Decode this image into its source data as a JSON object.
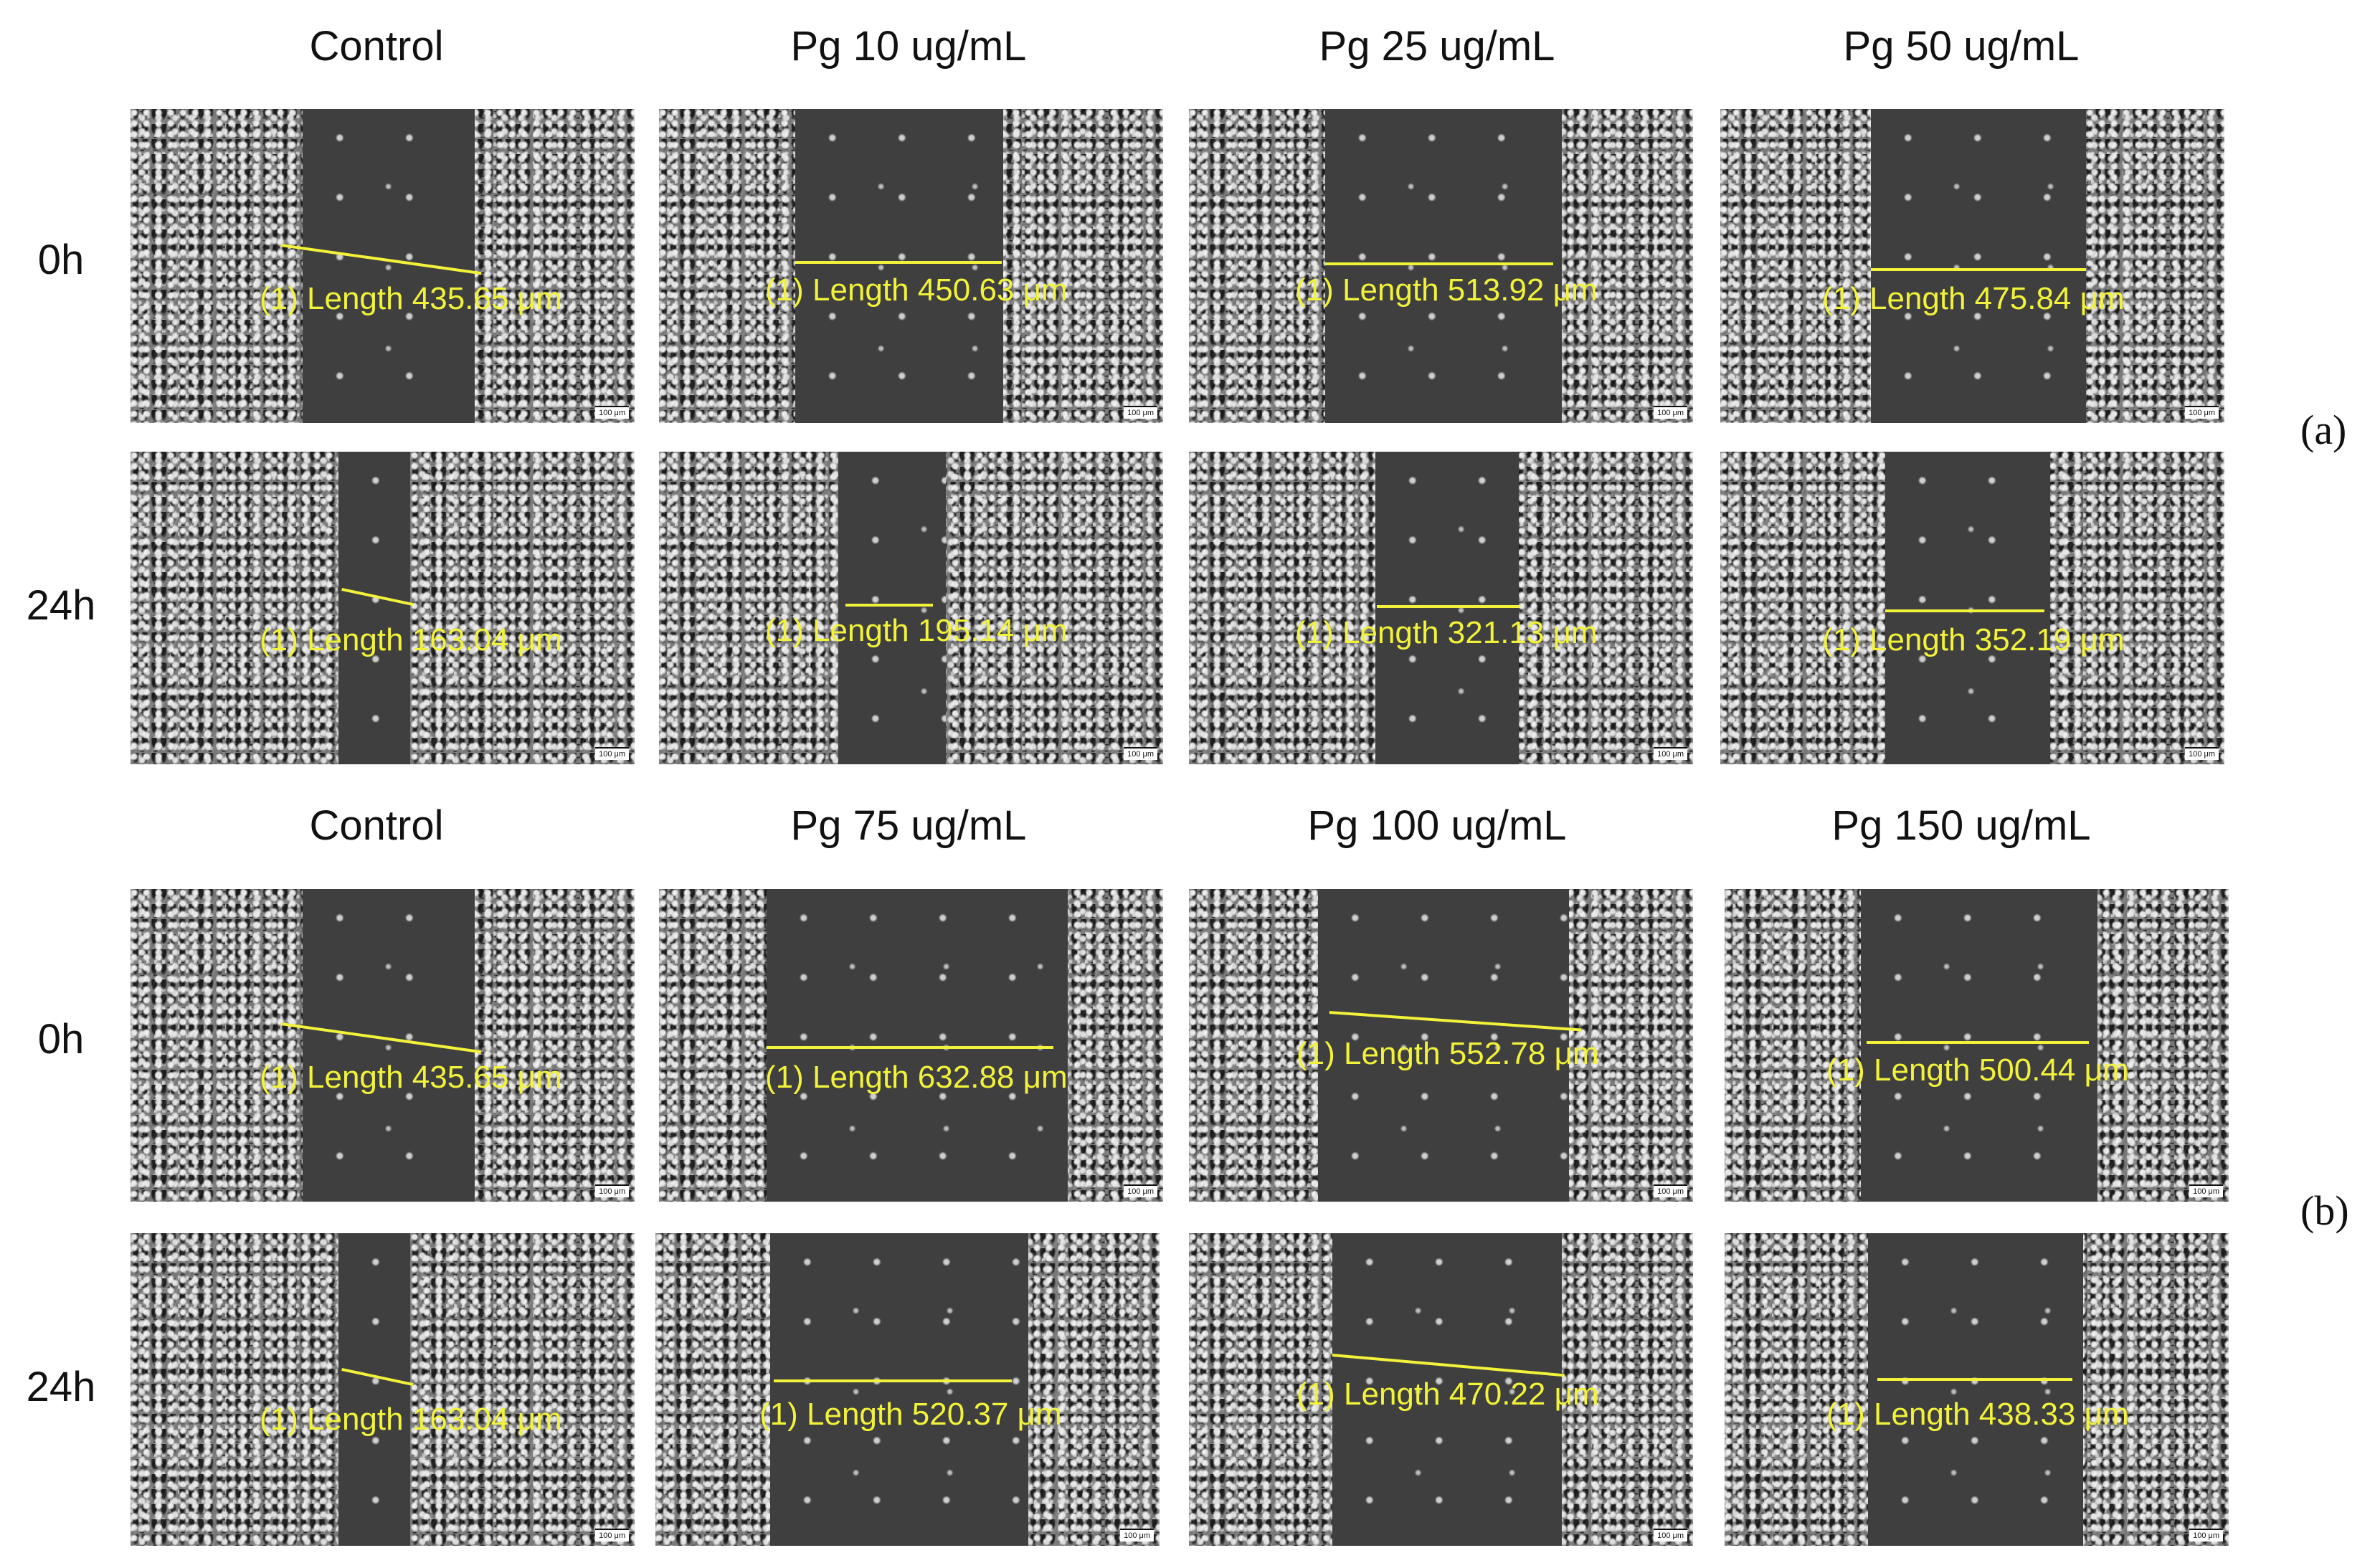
{
  "sections": [
    {
      "label": "(a)",
      "columns": [
        "Control",
        "Pg 10 ug/mL",
        "Pg 25 ug/mL",
        "Pg 50 ug/mL"
      ],
      "rows": [
        {
          "time": "0h",
          "panels": [
            {
              "measurement": "(1) Length 435.65 μm",
              "scale_bar": "100 μm"
            },
            {
              "measurement": "(1) Length 450.63 μm",
              "scale_bar": "100 μm"
            },
            {
              "measurement": "(1) Length 513.92 μm",
              "scale_bar": "100 μm"
            },
            {
              "measurement": "(1) Length 475.84 μm",
              "scale_bar": "100 μm"
            }
          ]
        },
        {
          "time": "24h",
          "panels": [
            {
              "measurement": "(1) Length 163.04 μm",
              "scale_bar": "100 μm"
            },
            {
              "measurement": "(1) Length 195.14 μm",
              "scale_bar": "100 μm"
            },
            {
              "measurement": "(1) Length 321.13 μm",
              "scale_bar": "100 μm"
            },
            {
              "measurement": "(1) Length 352.19 μm",
              "scale_bar": "100 μm"
            }
          ]
        }
      ]
    },
    {
      "label": "(b)",
      "columns": [
        "Control",
        "Pg 75 ug/mL",
        "Pg 100 ug/mL",
        "Pg 150 ug/mL"
      ],
      "rows": [
        {
          "time": "0h",
          "panels": [
            {
              "measurement": "(1) Length 435.65 μm",
              "scale_bar": "100 μm"
            },
            {
              "measurement": "(1) Length 632.88 μm",
              "scale_bar": "100 μm"
            },
            {
              "measurement": "(1) Length 552.78 μm",
              "scale_bar": "100 μm"
            },
            {
              "measurement": "(1) Length 500.44 μm",
              "scale_bar": "100 μm"
            }
          ]
        },
        {
          "time": "24h",
          "panels": [
            {
              "measurement": "(1) Length 163.04 μm",
              "scale_bar": "100 μm"
            },
            {
              "measurement": "(1) Length 520.37 μm",
              "scale_bar": "100 μm"
            },
            {
              "measurement": "(1) Length 470.22 μm",
              "scale_bar": "100 μm"
            },
            {
              "measurement": "(1) Length 438.33 μm",
              "scale_bar": "100 μm"
            }
          ]
        }
      ]
    }
  ],
  "colors": {
    "measurement": "#f2f23a",
    "background": "#ffffff",
    "text": "#111111"
  }
}
